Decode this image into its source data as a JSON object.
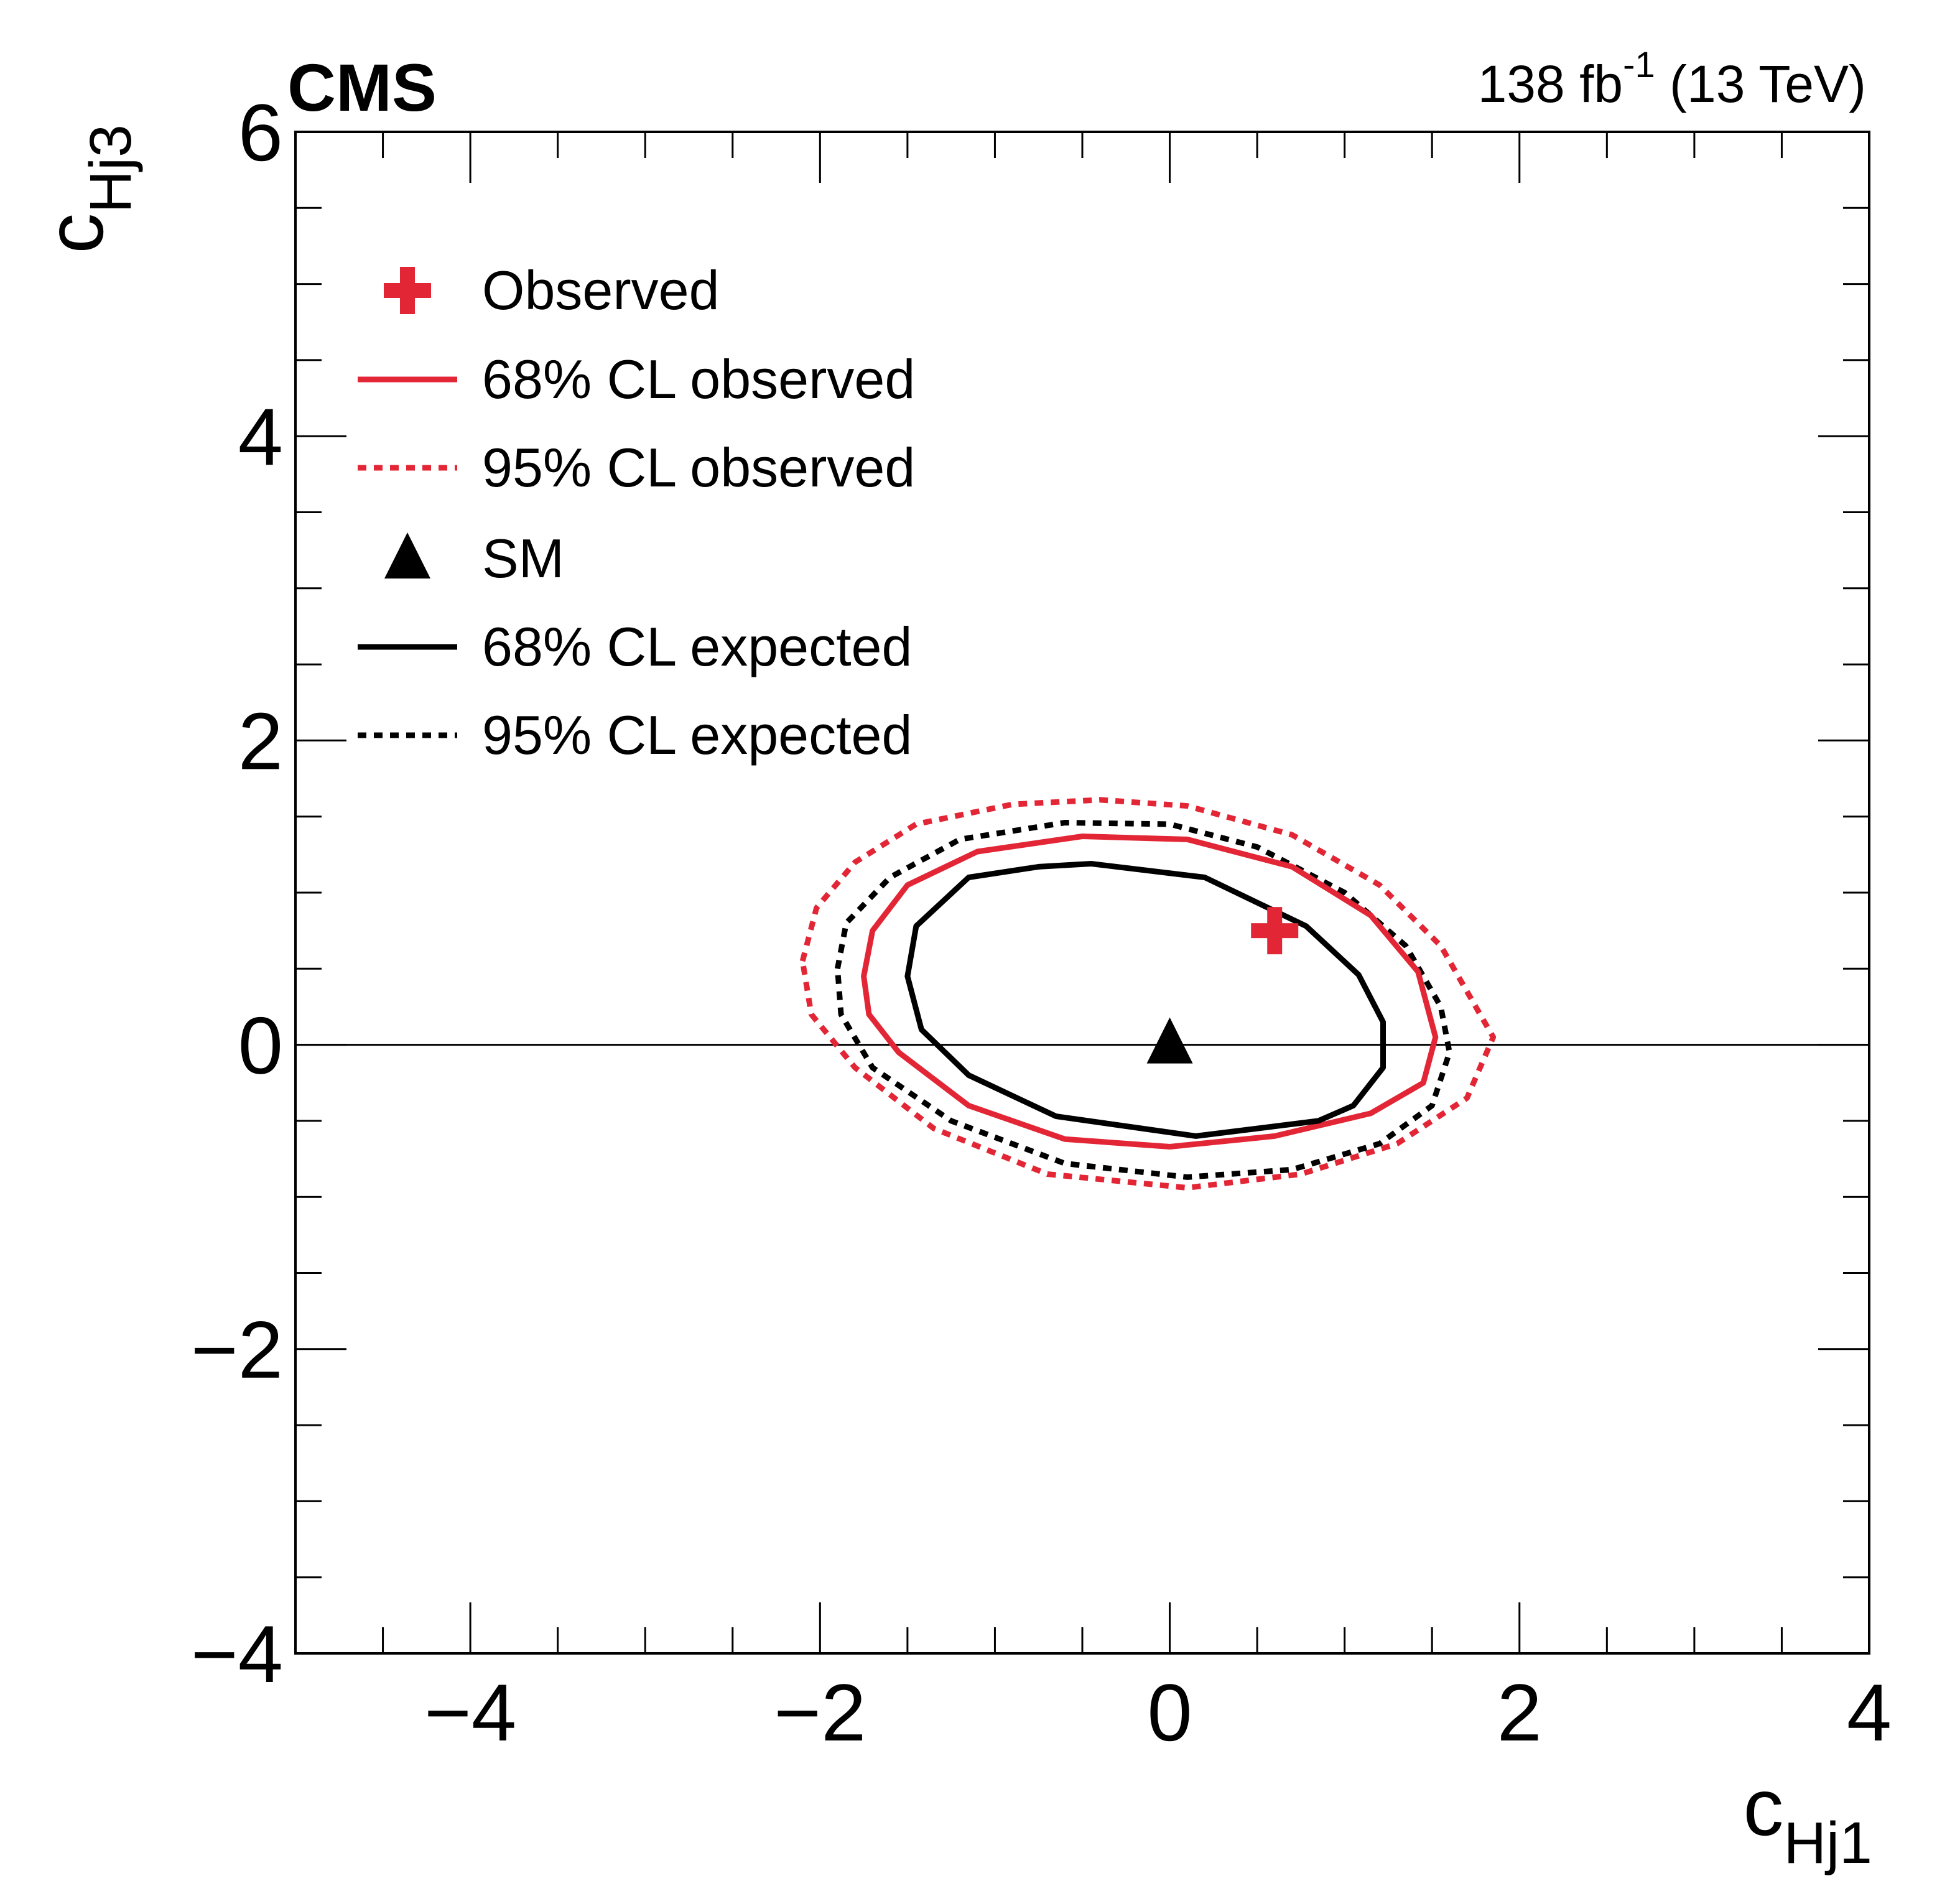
{
  "header": {
    "experiment": "CMS",
    "lumi_prefix": "138 fb",
    "lumi_exponent": "-1",
    "lumi_suffix": " (13 TeV)"
  },
  "chart_data": {
    "type": "contour",
    "xlabel": {
      "main": "c",
      "sub": "Hj1"
    },
    "ylabel": {
      "main": "c",
      "sub": "Hj3"
    },
    "xlim": [
      -5,
      4
    ],
    "ylim": [
      -4,
      6
    ],
    "x_ticks": [
      {
        "value": -4,
        "label": "−4"
      },
      {
        "value": -2,
        "label": "−2"
      },
      {
        "value": 0,
        "label": "0"
      },
      {
        "value": 2,
        "label": "2"
      },
      {
        "value": 4,
        "label": "4"
      }
    ],
    "y_ticks": [
      {
        "value": -4,
        "label": "−4"
      },
      {
        "value": -2,
        "label": "−2"
      },
      {
        "value": 0,
        "label": "0"
      },
      {
        "value": 2,
        "label": "2"
      },
      {
        "value": 4,
        "label": "4"
      },
      {
        "value": 6,
        "label": "6"
      }
    ],
    "reference_line_y": 0,
    "grid": false,
    "legend_placement": "top-left",
    "legend": [
      {
        "label": "Observed",
        "symbol": "cross",
        "color": "#e32636"
      },
      {
        "label": "68% CL observed",
        "symbol": "solid",
        "color": "#e32636"
      },
      {
        "label": "95% CL observed",
        "symbol": "dotted",
        "color": "#e32636"
      },
      {
        "label": "SM",
        "symbol": "triangle",
        "color": "#000000"
      },
      {
        "label": "68% CL expected",
        "symbol": "solid",
        "color": "#000000"
      },
      {
        "label": "95% CL expected",
        "symbol": "dotted",
        "color": "#000000"
      }
    ],
    "points": {
      "observed": {
        "x": 0.6,
        "y": 0.75
      },
      "sm": {
        "x": 0.0,
        "y": 0.0
      }
    },
    "contours": [
      {
        "name": "95% CL observed",
        "color": "#e32636",
        "style": "dotted",
        "points": [
          [
            -2.1,
            0.55
          ],
          [
            -2.02,
            0.9
          ],
          [
            -1.8,
            1.2
          ],
          [
            -1.45,
            1.45
          ],
          [
            -0.9,
            1.58
          ],
          [
            -0.4,
            1.61
          ],
          [
            0.1,
            1.57
          ],
          [
            0.7,
            1.38
          ],
          [
            1.2,
            1.05
          ],
          [
            1.55,
            0.65
          ],
          [
            1.85,
            0.05
          ],
          [
            1.7,
            -0.35
          ],
          [
            1.3,
            -0.65
          ],
          [
            0.75,
            -0.85
          ],
          [
            0.1,
            -0.94
          ],
          [
            -0.7,
            -0.85
          ],
          [
            -1.35,
            -0.55
          ],
          [
            -1.8,
            -0.15
          ],
          [
            -2.05,
            0.2
          ]
        ]
      },
      {
        "name": "95% CL expected",
        "color": "#000000",
        "style": "dotted",
        "points": [
          [
            -1.9,
            0.5
          ],
          [
            -1.85,
            0.8
          ],
          [
            -1.6,
            1.1
          ],
          [
            -1.2,
            1.35
          ],
          [
            -0.6,
            1.46
          ],
          [
            0.0,
            1.45
          ],
          [
            0.5,
            1.3
          ],
          [
            1.0,
            1.0
          ],
          [
            1.35,
            0.65
          ],
          [
            1.55,
            0.25
          ],
          [
            1.6,
            -0.05
          ],
          [
            1.5,
            -0.4
          ],
          [
            1.2,
            -0.65
          ],
          [
            0.7,
            -0.82
          ],
          [
            0.1,
            -0.87
          ],
          [
            -0.6,
            -0.78
          ],
          [
            -1.25,
            -0.5
          ],
          [
            -1.7,
            -0.15
          ],
          [
            -1.88,
            0.2
          ]
        ]
      },
      {
        "name": "68% CL observed",
        "color": "#e32636",
        "style": "solid",
        "points": [
          [
            -1.75,
            0.45
          ],
          [
            -1.7,
            0.75
          ],
          [
            -1.5,
            1.05
          ],
          [
            -1.1,
            1.27
          ],
          [
            -0.5,
            1.37
          ],
          [
            0.1,
            1.35
          ],
          [
            0.7,
            1.17
          ],
          [
            1.15,
            0.85
          ],
          [
            1.42,
            0.48
          ],
          [
            1.52,
            0.05
          ],
          [
            1.45,
            -0.25
          ],
          [
            1.15,
            -0.45
          ],
          [
            0.6,
            -0.6
          ],
          [
            0.0,
            -0.67
          ],
          [
            -0.6,
            -0.62
          ],
          [
            -1.15,
            -0.4
          ],
          [
            -1.55,
            -0.05
          ],
          [
            -1.72,
            0.2
          ]
        ]
      },
      {
        "name": "68% CL expected",
        "color": "#000000",
        "style": "solid",
        "points": [
          [
            -1.5,
            0.45
          ],
          [
            -1.45,
            0.78
          ],
          [
            -1.15,
            1.1
          ],
          [
            -0.75,
            1.17
          ],
          [
            -0.45,
            1.19
          ],
          [
            0.2,
            1.1
          ],
          [
            0.78,
            0.78
          ],
          [
            1.08,
            0.46
          ],
          [
            1.22,
            0.15
          ],
          [
            1.22,
            -0.15
          ],
          [
            1.05,
            -0.4
          ],
          [
            0.85,
            -0.5
          ],
          [
            0.15,
            -0.6
          ],
          [
            -0.65,
            -0.47
          ],
          [
            -1.15,
            -0.2
          ],
          [
            -1.42,
            0.1
          ]
        ]
      }
    ]
  }
}
